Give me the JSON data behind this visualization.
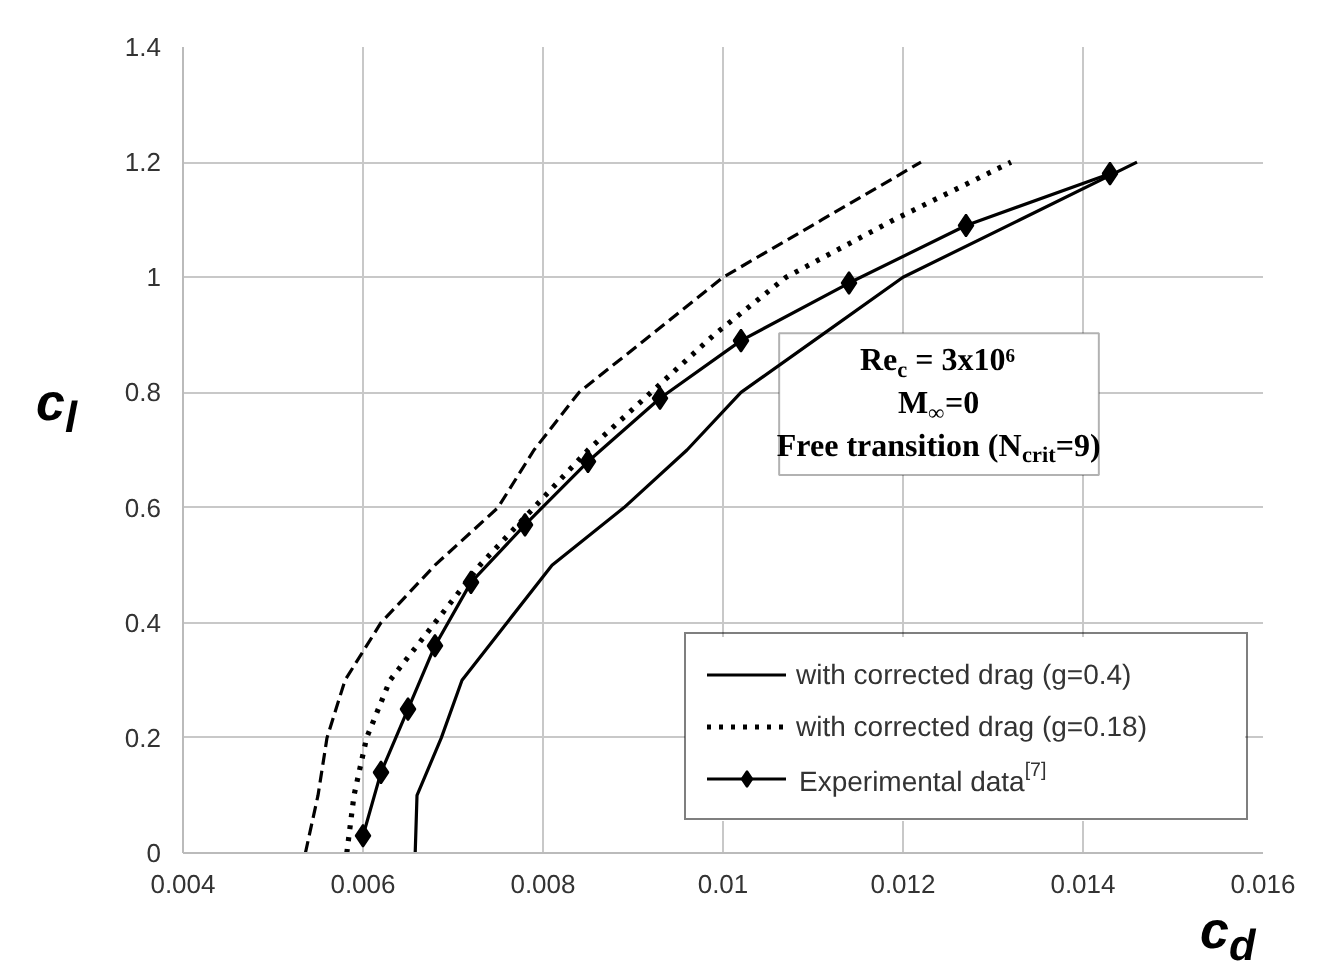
{
  "chart_data": {
    "type": "line",
    "xlabel": "c$_{d}$",
    "ylabel": "c$_{l}$",
    "xlim": [
      0.004,
      0.016
    ],
    "xticks": [
      0.004,
      0.006,
      0.008,
      0.01,
      0.012,
      0.014,
      0.016
    ],
    "ylim": [
      0,
      1.4
    ],
    "yticks": [
      0,
      0.2,
      0.4,
      0.6,
      0.8,
      1,
      1.2,
      1.4
    ],
    "grid": true,
    "legend": "bottom right",
    "annotations": [
      "Re$_{c}$ = 3x10⁶",
      "M$_{∞}$=0",
      "Free transition (N$_{crit}$=9)"
    ],
    "series": [
      {
        "color": "#000000",
        "line_style": "dashed",
        "marker": "none",
        "x": [
          0.00536,
          0.0055,
          0.0056,
          0.0058,
          0.006,
          0.0062,
          0.0068,
          0.0075,
          0.0079,
          0.0084,
          0.0092,
          0.01,
          0.0111,
          0.0122
        ],
        "values": [
          0,
          0.1,
          0.2,
          0.3,
          0.35,
          0.4,
          0.5,
          0.6,
          0.7,
          0.8,
          0.9,
          1.0,
          1.1,
          1.2
        ]
      },
      {
        "name": "with corrected drag (g=0.4)",
        "color": "#000000",
        "line_style": "solid",
        "marker": "none",
        "x": [
          0.00658,
          0.0066,
          0.00687,
          0.0071,
          0.0076,
          0.0081,
          0.0089,
          0.0096,
          0.0102,
          0.0111,
          0.012,
          0.0133,
          0.0146
        ],
        "values": [
          0,
          0.1,
          0.2,
          0.3,
          0.4,
          0.5,
          0.6,
          0.7,
          0.8,
          0.9,
          1.0,
          1.1,
          1.2
        ]
      },
      {
        "name": "with corrected drag (g=0.18)",
        "color": "#000000",
        "line_style": "dotted",
        "marker": "none",
        "x": [
          0.00582,
          0.0059,
          0.00604,
          0.0063,
          0.0068,
          0.0073,
          0.0079,
          0.0085,
          0.0092,
          0.0099,
          0.0107,
          0.0119,
          0.0132
        ],
        "values": [
          0,
          0.1,
          0.2,
          0.3,
          0.4,
          0.5,
          0.6,
          0.7,
          0.8,
          0.9,
          1.0,
          1.1,
          1.2
        ]
      },
      {
        "name": "Experimental data$^{[7]}$",
        "color": "#000000",
        "line_style": "solid",
        "marker": "diamond",
        "x": [
          0.006,
          0.0062,
          0.0065,
          0.0068,
          0.0072,
          0.0078,
          0.0085,
          0.0093,
          0.0102,
          0.0114,
          0.0127,
          0.0143
        ],
        "values": [
          0.03,
          0.14,
          0.25,
          0.36,
          0.47,
          0.57,
          0.68,
          0.79,
          0.89,
          0.99,
          1.09,
          1.18
        ]
      }
    ]
  }
}
